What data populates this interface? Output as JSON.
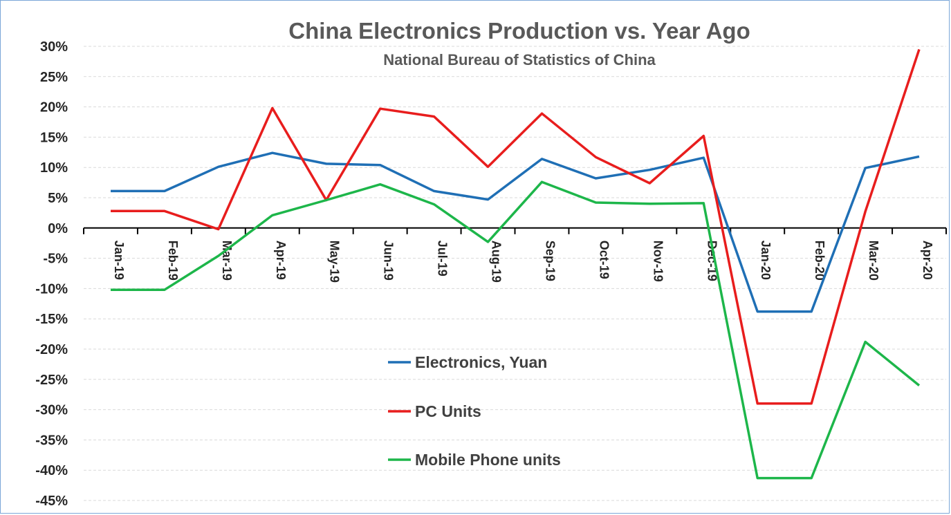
{
  "chart_data": {
    "type": "line",
    "title": "China Electronics Production vs. Year Ago",
    "subtitle": "National Bureau of Statistics of China",
    "categories": [
      "Jan-19",
      "Feb-19",
      "Mar-19",
      "Apr-19",
      "May-19",
      "Jun-19",
      "Jul-19",
      "Aug-19",
      "Sep-19",
      "Oct-19",
      "Nov-19",
      "Dec-19",
      "Jan-20",
      "Feb-20",
      "Mar-20",
      "Apr-20"
    ],
    "yticks": [
      30,
      25,
      20,
      15,
      10,
      5,
      0,
      -5,
      -10,
      -15,
      -20,
      -25,
      -30,
      -35,
      -40,
      -45
    ],
    "ytick_labels": [
      "30%",
      "25%",
      "20%",
      "15%",
      "10%",
      "5%",
      "0%",
      "-5%",
      "-10%",
      "-15%",
      "-20%",
      "-25%",
      "-30%",
      "-35%",
      "-40%",
      "-45%"
    ],
    "ylim": [
      -45,
      30
    ],
    "grid": true,
    "legend_position": "center",
    "series": [
      {
        "name": "Electronics, Yuan",
        "color": "#1f6fb5",
        "values": [
          6.1,
          6.1,
          10.1,
          12.4,
          10.6,
          10.4,
          6.1,
          4.7,
          11.4,
          8.2,
          9.6,
          11.6,
          -13.8,
          -13.8,
          9.9,
          11.8
        ]
      },
      {
        "name": "PC Units",
        "color": "#e81d1d",
        "values": [
          2.8,
          2.8,
          -0.2,
          19.8,
          4.6,
          19.7,
          18.4,
          10.1,
          18.9,
          11.7,
          7.4,
          15.2,
          -29.0,
          -29.0,
          2.7,
          29.5
        ]
      },
      {
        "name": "Mobile Phone units",
        "color": "#1db64a",
        "values": [
          -10.2,
          -10.2,
          -4.6,
          2.1,
          4.6,
          7.2,
          3.9,
          -2.3,
          7.6,
          4.2,
          4.0,
          4.1,
          -41.3,
          -41.3,
          -18.8,
          -26.0
        ]
      }
    ]
  }
}
